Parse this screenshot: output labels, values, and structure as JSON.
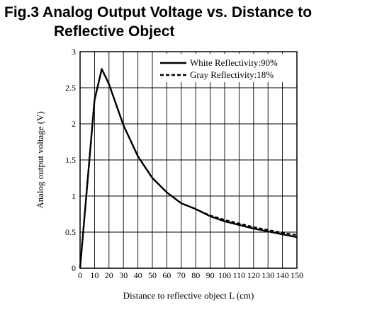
{
  "title_line1": "Fig.3 Analog Output Voltage vs. Distance to",
  "title_line2": "Reflective Object",
  "chart_data": {
    "type": "line",
    "title": "Fig.3 Analog Output Voltage vs. Distance to Reflective Object",
    "xlabel": "Distance to reflective object L (cm)",
    "ylabel": "Analog output voltage (V)",
    "xlim": [
      0,
      150
    ],
    "ylim": [
      0,
      3
    ],
    "xticks": [
      0,
      10,
      20,
      30,
      40,
      50,
      60,
      70,
      80,
      90,
      100,
      110,
      120,
      130,
      140,
      150
    ],
    "yticks": [
      0,
      0.5,
      1,
      1.5,
      2,
      2.5,
      3
    ],
    "ytick_labels": [
      "0",
      "0.5",
      "1",
      "1.5",
      "2",
      "2.5",
      "3"
    ],
    "grid": true,
    "legend_position": "top-right",
    "series": [
      {
        "name": "White Reflectivity:90%",
        "style": "solid",
        "x": [
          0,
          10,
          15,
          20,
          30,
          40,
          50,
          60,
          70,
          80,
          90,
          100,
          110,
          120,
          130,
          140,
          150
        ],
        "y": [
          0,
          2.33,
          2.76,
          2.55,
          1.98,
          1.55,
          1.25,
          1.05,
          0.9,
          0.82,
          0.72,
          0.65,
          0.6,
          0.55,
          0.51,
          0.47,
          0.43
        ]
      },
      {
        "name": "Gray Reflectivity:18%",
        "style": "dashed",
        "x": [
          0,
          10,
          15,
          20,
          30,
          40,
          50,
          60,
          70,
          80,
          90,
          100,
          110,
          120,
          130,
          140,
          150
        ],
        "y": [
          0,
          2.33,
          2.76,
          2.55,
          1.98,
          1.55,
          1.25,
          1.05,
          0.9,
          0.82,
          0.73,
          0.67,
          0.62,
          0.57,
          0.53,
          0.49,
          0.46
        ]
      }
    ]
  }
}
